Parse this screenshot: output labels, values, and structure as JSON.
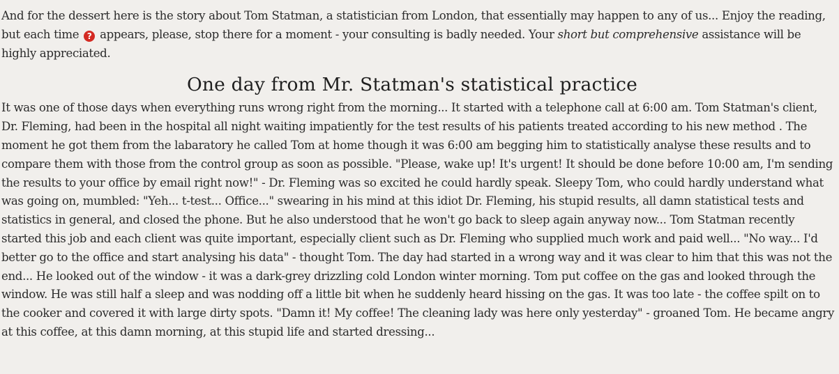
{
  "intro": {
    "text_before_icon": "And for the dessert here is the story about Tom Statman, a statistician from London, that essentially may happen to any of us... Enjoy the reading, but each time",
    "icon": "question-circle-icon",
    "icon_glyph": "?",
    "icon_color": "#d42a22",
    "text_after_icon": "appears, please, stop there for a moment - your consulting is badly needed. Your",
    "emphasis": "short but comprehensive",
    "text_end": "assistance will be highly appreciated."
  },
  "story": {
    "title": "One day from Mr. Statman's statistical practice",
    "paragraph": "It was one of those days when everything runs wrong right from the morning... It started with a telephone call at 6:00 am. Tom Statman's client, Dr. Fleming, had been in the hospital all night waiting impatiently for the test results of his patients treated according to his new method . The moment he got them from the labaratory he called Tom at home though it was 6:00 am begging him to statistically analyse these results and to compare them with those from the control group as soon as possible. \"Please, wake up! It's urgent! It should be done before 10:00 am, I'm sending the results to your office by email right now!\" - Dr. Fleming was so excited he could hardly speak. Sleepy Tom, who could hardly understand what was going on, mumbled: \"Yeh... t-test... Office...\" swearing in his mind at this idiot Dr. Fleming, his stupid results, all damn statistical tests and statistics in general, and closed the phone. But he also understood that he won't go back to sleep again anyway now... Tom Statman recently started this job and each client was quite important, especially client such as Dr. Fleming who supplied much work and paid well... \"No way... I'd better go to the office and start analysing his data\" - thought Tom. The day had started in a wrong way and it was clear to him that this was not the end... He looked out of the window - it was a dark-grey drizzling cold London winter morning. Tom put coffee on the gas and looked through the window. He was still half a sleep and was nodding off a little bit when he suddenly heard hissing on the gas. It was too late - the coffee spilt on to the cooker and covered it with large dirty spots. \"Damn it! My coffee! The cleaning lady was here only yesterday\" - groaned Tom. He became angry at this coffee, at this damn morning, at this stupid life and started dressing..."
  }
}
